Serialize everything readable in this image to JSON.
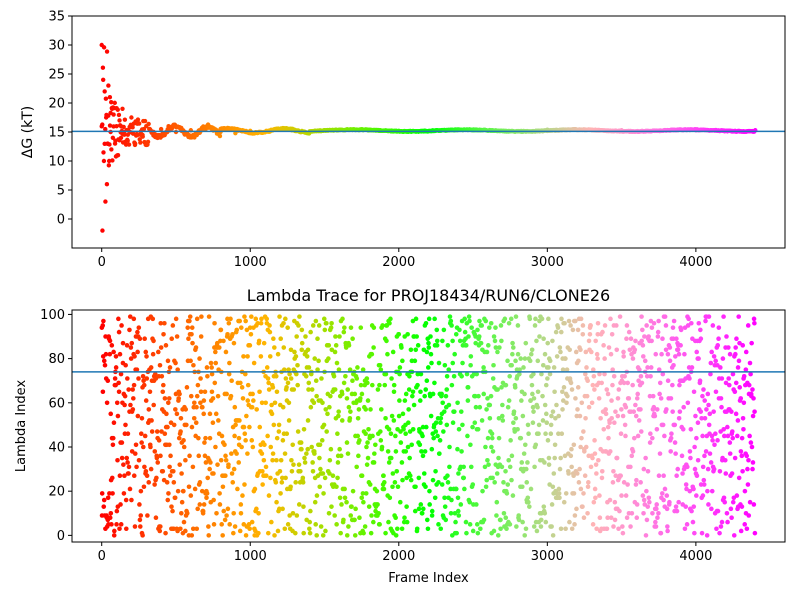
{
  "chart_data": [
    {
      "type": "scatter",
      "title": "",
      "xlabel": "",
      "ylabel": "ΔG (kT)",
      "xlim": [
        -200,
        4600
      ],
      "ylim": [
        -5,
        35
      ],
      "xticks": [
        0,
        1000,
        2000,
        3000,
        4000
      ],
      "yticks": [
        0,
        5,
        10,
        15,
        20,
        25,
        30,
        35
      ],
      "grid": false,
      "reference_line": 15.1,
      "colormap": "rainbow (red at frame 0 → violet at last frame)",
      "n_points": 4400,
      "series": [
        {
          "x": [
            0,
            5,
            10,
            15,
            20,
            25,
            30,
            35,
            40,
            45,
            50,
            55,
            60,
            65,
            70,
            75,
            80,
            90,
            100,
            110,
            120,
            130,
            140,
            150,
            175,
            200,
            225,
            250,
            275,
            300,
            350,
            400,
            450,
            500,
            600,
            700,
            800,
            900,
            1000,
            1200,
            1500,
            2000,
            2500,
            3000,
            3500,
            4000,
            4400
          ],
          "y": [
            30,
            -2,
            24,
            10,
            22,
            3,
            17.5,
            6,
            13,
            23,
            10,
            21,
            15,
            12,
            19,
            14,
            18,
            13,
            16,
            11,
            17,
            14,
            19,
            15,
            13.5,
            17.5,
            13,
            16.5,
            14.5,
            16,
            15,
            15.5,
            16,
            15,
            15.3,
            15.5,
            15,
            14.8,
            15.2,
            15.5,
            15.3,
            15.2,
            15.3,
            15.4,
            15.3,
            15.3,
            15.3
          ]
        }
      ]
    },
    {
      "type": "scatter",
      "title": "Lambda Trace for PROJ18434/RUN6/CLONE26",
      "xlabel": "Frame Index",
      "ylabel": "Lambda Index",
      "xlim": [
        -200,
        4600
      ],
      "ylim": [
        -3,
        102
      ],
      "xticks": [
        0,
        1000,
        2000,
        3000,
        4000
      ],
      "yticks": [
        0,
        20,
        40,
        60,
        80,
        100
      ],
      "grid": false,
      "reference_line": 74,
      "colormap": "rainbow (red at frame 0 → violet at last frame)",
      "n_points": 4400,
      "value_range": [
        0,
        99
      ]
    }
  ]
}
